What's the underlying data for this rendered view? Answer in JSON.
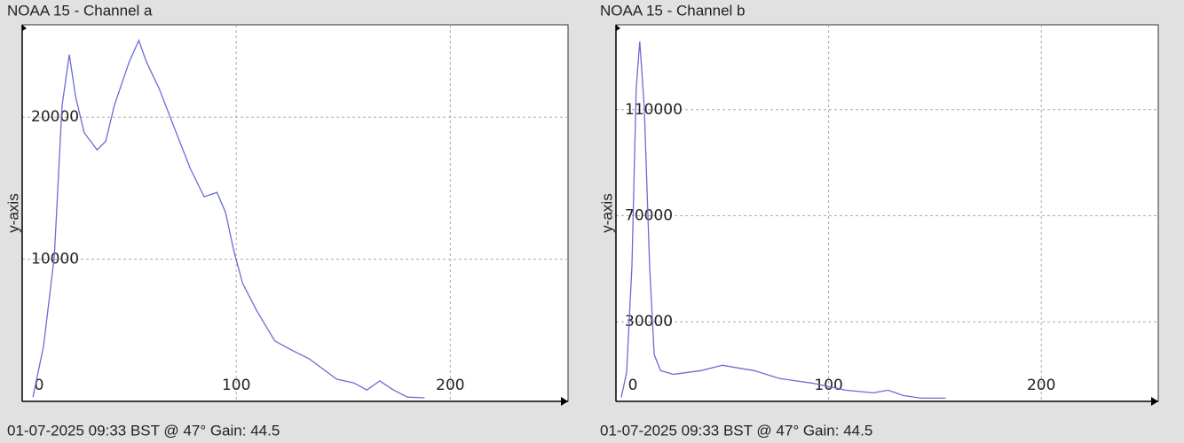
{
  "chart_data": [
    {
      "type": "line",
      "title": "NOAA 15 - Channel a",
      "y_label": "y-axis",
      "footer": "01-07-2025 09:33 BST @ 47° Gain: 44.5",
      "color": "#6b6bd6",
      "grid": true,
      "xlim": [
        0,
        255
      ],
      "xticks": [
        0,
        100,
        200
      ],
      "ylim": [
        0,
        26500
      ],
      "yticks": [
        10000,
        20000
      ],
      "x": [
        5,
        10,
        15,
        18.6,
        22,
        25,
        29,
        35,
        39,
        43,
        50,
        54.5,
        58,
        64,
        72,
        78.5,
        85,
        91,
        95,
        99,
        103,
        109.5,
        118,
        126,
        134,
        147,
        155,
        161,
        167,
        173.5,
        180,
        188
      ],
      "values": [
        300,
        3900,
        10200,
        20800,
        24400,
        21400,
        18900,
        17700,
        18300,
        20800,
        23900,
        25400,
        23900,
        22000,
        18900,
        16400,
        14400,
        14700,
        13300,
        10500,
        8300,
        6400,
        4250,
        3600,
        3000,
        1560,
        1300,
        800,
        1440,
        800,
        300,
        250
      ]
    },
    {
      "type": "line",
      "title": "NOAA 15 - Channel b",
      "y_label": "y-axis",
      "footer": "01-07-2025 09:33 BST @ 47° Gain: 44.5",
      "color": "#6b6bd6",
      "grid": true,
      "xlim": [
        0,
        255
      ],
      "xticks": [
        0,
        100,
        200
      ],
      "ylim": [
        0,
        142000
      ],
      "yticks": [
        30000,
        70000,
        110000
      ],
      "x": [
        2.5,
        5,
        7.5,
        9.5,
        11.2,
        13.3,
        15.8,
        18,
        21,
        27,
        40,
        50,
        65,
        77,
        92,
        108,
        121,
        128,
        135,
        143.5,
        155
      ],
      "values": [
        1500,
        10900,
        51000,
        118000,
        135700,
        111000,
        51000,
        17600,
        11600,
        10200,
        11600,
        13600,
        11600,
        8600,
        6900,
        4200,
        3200,
        4200,
        2200,
        1200,
        1200
      ]
    }
  ]
}
